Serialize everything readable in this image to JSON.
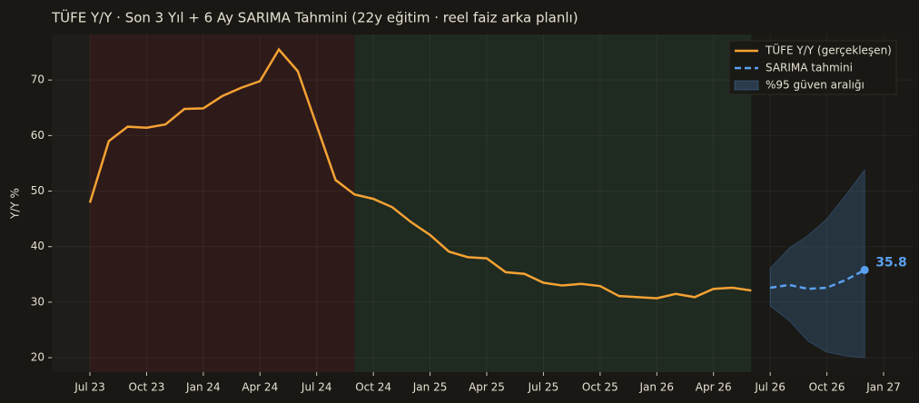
{
  "chart_data": {
    "type": "line",
    "title": "TÜFE Y/Y · Son 3 Yıl + 6 Ay SARIMA Tahmini (22y eğitim · reel faiz arka planlı)",
    "y_label": "Y/Y %",
    "categories": [
      "Jul 23",
      null,
      null,
      "Oct 23",
      null,
      null,
      "Jan 24",
      null,
      null,
      "Apr 24",
      null,
      null,
      "Jul 24",
      null,
      null,
      "Oct 24",
      null,
      null,
      "Jan 25",
      null,
      null,
      "Apr 25",
      null,
      null,
      "Jul 25",
      null,
      null,
      "Oct 25",
      null,
      null,
      "Jan 26",
      null,
      null,
      "Apr 26",
      null,
      null,
      "Jul 26",
      null,
      null,
      "Oct 26",
      null,
      null,
      "Jan 27"
    ],
    "series": [
      {
        "name": "TÜFE Y/Y (gerçekleşen)",
        "color": "#f5a234",
        "dash": false,
        "values": [
          47.9,
          59.0,
          61.6,
          61.4,
          62.0,
          64.8,
          64.9,
          67.1,
          68.6,
          69.8,
          75.5,
          71.6,
          61.8,
          52.0,
          49.4,
          48.6,
          47.1,
          44.4,
          42.1,
          39.1,
          38.1,
          37.9,
          35.4,
          35.1,
          33.5,
          33.0,
          33.3,
          32.9,
          31.1,
          30.9,
          30.7,
          31.5,
          30.9,
          32.4,
          32.6,
          32.1,
          null,
          null,
          null,
          null,
          null,
          null,
          null
        ]
      },
      {
        "name": "SARIMA tahmini",
        "color": "#5aa0f0",
        "dash": true,
        "values": [
          null,
          null,
          null,
          null,
          null,
          null,
          null,
          null,
          null,
          null,
          null,
          null,
          null,
          null,
          null,
          null,
          null,
          null,
          null,
          null,
          null,
          null,
          null,
          null,
          null,
          null,
          null,
          null,
          null,
          null,
          null,
          null,
          null,
          null,
          null,
          null,
          32.6,
          33.1,
          32.4,
          32.6,
          34.0,
          35.8,
          null
        ]
      }
    ],
    "band": {
      "name": "%95 güven aralığı",
      "color": "#5aa0f0",
      "upper": [
        null,
        null,
        null,
        null,
        null,
        null,
        null,
        null,
        null,
        null,
        null,
        null,
        null,
        null,
        null,
        null,
        null,
        null,
        null,
        null,
        null,
        null,
        null,
        null,
        null,
        null,
        null,
        null,
        null,
        null,
        null,
        null,
        null,
        null,
        null,
        null,
        36.1,
        39.7,
        42.0,
        45.0,
        49.3,
        53.8,
        null
      ],
      "lower": [
        null,
        null,
        null,
        null,
        null,
        null,
        null,
        null,
        null,
        null,
        null,
        null,
        null,
        null,
        null,
        null,
        null,
        null,
        null,
        null,
        null,
        null,
        null,
        null,
        null,
        null,
        null,
        null,
        null,
        null,
        null,
        null,
        null,
        null,
        null,
        null,
        29.3,
        26.7,
        23.0,
        21.0,
        20.3,
        20.0,
        null
      ]
    },
    "ylim": [
      17.4,
      78.2
    ],
    "yticks": [
      20,
      30,
      40,
      50,
      60,
      70
    ],
    "grid": true,
    "legend": "upper right"
  }
}
